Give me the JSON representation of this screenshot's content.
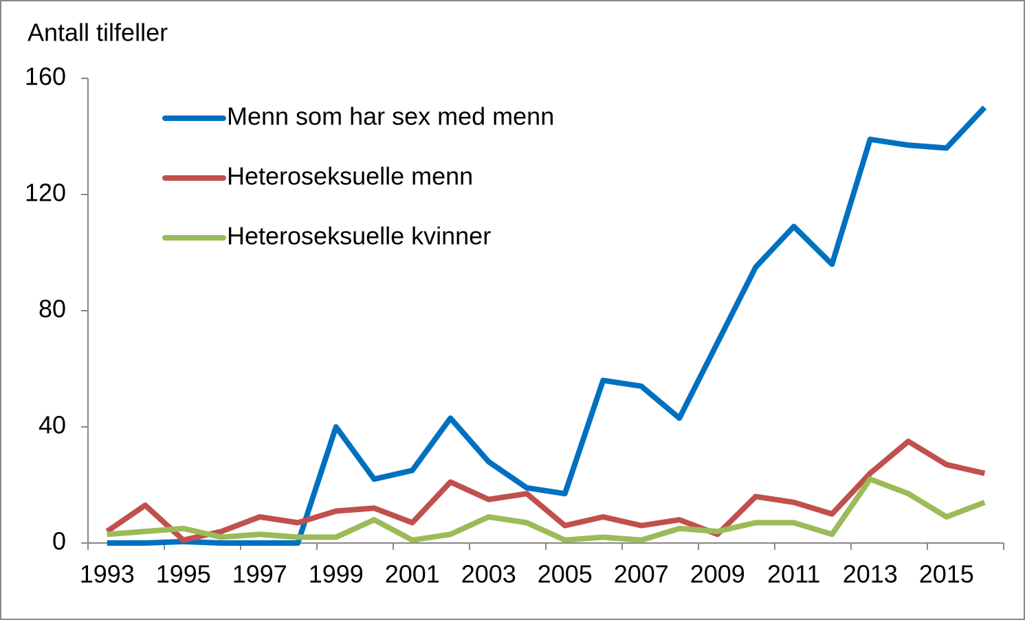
{
  "chart_data": {
    "type": "line",
    "y_label": "Antall tilfeller",
    "categories": [
      "1993",
      null,
      "1995",
      null,
      "1997",
      null,
      "1999",
      null,
      "2001",
      null,
      "2003",
      null,
      "2005",
      null,
      "2007",
      null,
      "2009",
      null,
      "2011",
      null,
      "2013",
      null,
      "2015",
      null
    ],
    "series": [
      {
        "name": "Menn som har sex med menn",
        "color": "#0070c0",
        "values": [
          0,
          0,
          0.5,
          0,
          0,
          0,
          40,
          22,
          25,
          43,
          28,
          19,
          17,
          56,
          54,
          43,
          69,
          95,
          109,
          96,
          139,
          137,
          136,
          150
        ]
      },
      {
        "name": "Heteroseksuelle menn",
        "color": "#c0504d",
        "values": [
          4,
          13,
          1,
          4,
          9,
          7,
          11,
          12,
          7,
          21,
          15,
          17,
          6,
          9,
          6,
          8,
          3,
          16,
          14,
          10,
          24,
          35,
          27,
          24
        ]
      },
      {
        "name": "Heteroseksuelle kvinner",
        "color": "#9bbb59",
        "values": [
          3,
          4,
          5,
          2,
          3,
          2,
          2,
          8,
          1,
          3,
          9,
          7,
          1,
          2,
          1,
          5,
          4,
          7,
          7,
          3,
          22,
          17,
          9,
          14
        ]
      }
    ],
    "ylim": [
      0,
      160
    ],
    "yticks": [
      0,
      40,
      80,
      120,
      160
    ],
    "grid": false,
    "legend": "upper-left"
  }
}
